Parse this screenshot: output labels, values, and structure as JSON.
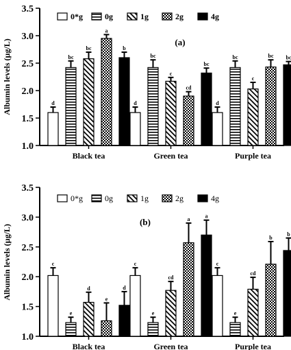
{
  "chart_data": [
    {
      "type": "bar",
      "panel_label": "(a)",
      "ylabel": "Albumin levels (µg/L)",
      "xlabel": "",
      "ylim": [
        1.0,
        3.5
      ],
      "yticks": [
        "1.0",
        "1.5",
        "2.0",
        "2.5",
        "3.0",
        "3.5"
      ],
      "grid": false,
      "legend": "top",
      "categories": [
        "Black tea",
        "Green tea",
        "Purple tea"
      ],
      "series": [
        {
          "name": "0*g",
          "pattern": "white",
          "values": [
            1.6,
            1.6,
            1.6
          ],
          "errors": [
            0.1,
            0.1,
            0.1
          ],
          "letters": [
            "d",
            "d",
            "d"
          ]
        },
        {
          "name": "0g",
          "pattern": "hlines",
          "values": [
            2.42,
            2.42,
            2.42
          ],
          "errors": [
            0.12,
            0.14,
            0.12
          ],
          "letters": [
            "bc",
            "bc",
            "bc"
          ]
        },
        {
          "name": "1g",
          "pattern": "diagonal",
          "values": [
            2.58,
            2.17,
            2.03
          ],
          "errors": [
            0.12,
            0.07,
            0.12
          ],
          "letters": [
            "bc",
            "c",
            "c"
          ]
        },
        {
          "name": "2g",
          "pattern": "checker",
          "values": [
            2.95,
            1.9,
            2.43
          ],
          "errors": [
            0.07,
            0.08,
            0.13
          ],
          "letters": [
            "a",
            "cd",
            "bc"
          ]
        },
        {
          "name": "4g",
          "pattern": "black",
          "values": [
            2.6,
            2.32,
            2.47
          ],
          "errors": [
            0.1,
            0.09,
            0.06
          ],
          "letters": [
            "b",
            "bc",
            "bc"
          ]
        }
      ]
    },
    {
      "type": "bar",
      "panel_label": "(b)",
      "ylabel": "Albumin levels (µg/L)",
      "xlabel": "",
      "ylim": [
        1.0,
        3.5
      ],
      "yticks": [
        "1.0",
        "1.5",
        "2.0",
        "2.5",
        "3.0",
        "3.5"
      ],
      "grid": false,
      "legend": "top",
      "categories": [
        "Black tea",
        "Green tea",
        "Purple tea"
      ],
      "series": [
        {
          "name": "0*g",
          "pattern": "white",
          "values": [
            2.02,
            2.02,
            2.02
          ],
          "errors": [
            0.13,
            0.13,
            0.13
          ],
          "letters": [
            "c",
            "c",
            "c"
          ]
        },
        {
          "name": "0g",
          "pattern": "hlines",
          "values": [
            1.23,
            1.23,
            1.23
          ],
          "errors": [
            0.09,
            0.09,
            0.09
          ],
          "letters": [
            "e",
            "e",
            "e"
          ]
        },
        {
          "name": "1g",
          "pattern": "diagonal",
          "values": [
            1.57,
            1.77,
            1.79
          ],
          "errors": [
            0.17,
            0.15,
            0.2
          ],
          "letters": [
            "d",
            "cd",
            "cd"
          ]
        },
        {
          "name": "2g",
          "pattern": "checker",
          "values": [
            1.26,
            2.57,
            2.21
          ],
          "errors": [
            0.3,
            0.33,
            0.38
          ],
          "letters": [
            "e",
            "a",
            "b"
          ]
        },
        {
          "name": "4g",
          "pattern": "black",
          "values": [
            1.52,
            2.7,
            2.44
          ],
          "errors": [
            0.23,
            0.25,
            0.21
          ],
          "letters": [
            "d",
            "a",
            "b"
          ]
        }
      ]
    }
  ]
}
